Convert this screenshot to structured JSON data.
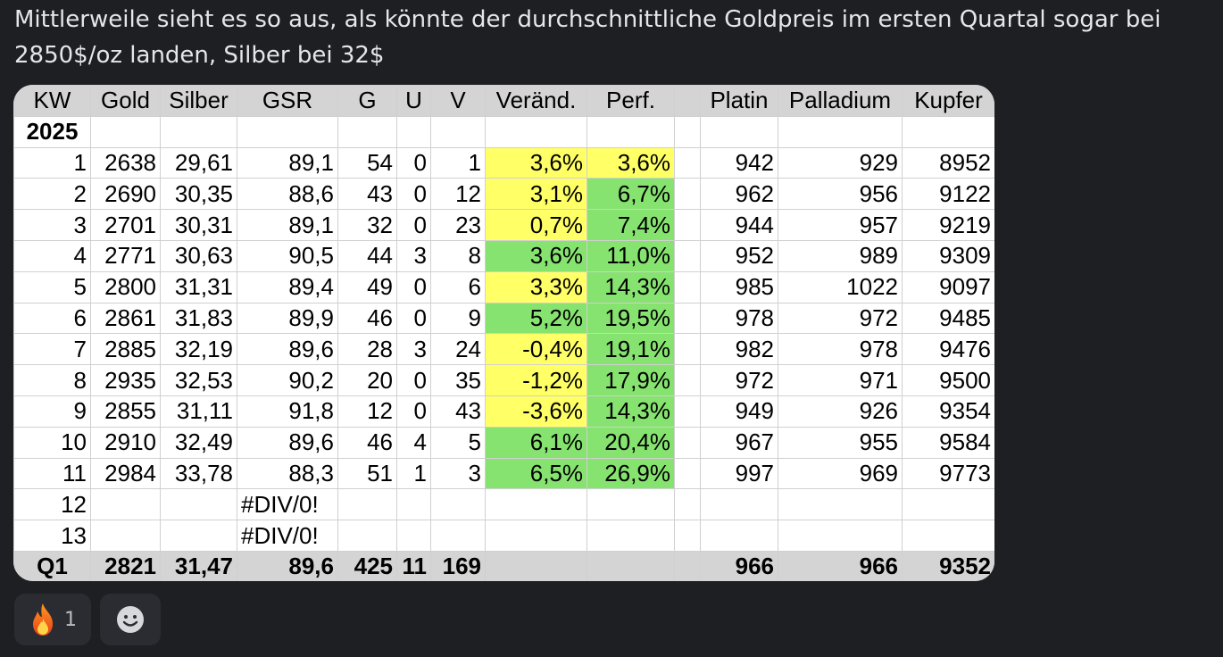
{
  "message": {
    "text": "Mittlerweile sieht es so aus, als könnte der durchschnittliche Goldpreis im ersten Quartal sogar bei 2850$/oz landen, Silber bei 32$"
  },
  "sheet": {
    "headers": [
      "KW",
      "Gold",
      "Silber",
      "GSR",
      "G",
      "U",
      "V",
      "Veränd.",
      "Perf.",
      "",
      "Platin",
      "Palladium",
      "Kupfer"
    ],
    "year_label": "2025",
    "rows": [
      {
        "kw": "1",
        "gold": "2638",
        "silber": "29,61",
        "gsr": "89,1",
        "g": "54",
        "u": "0",
        "v": "1",
        "veraend": "3,6%",
        "perf": "3,6%",
        "platin": "942",
        "palladium": "929",
        "kupfer": "8952",
        "veraend_color": "#ffff66",
        "perf_color": "#ffff66"
      },
      {
        "kw": "2",
        "gold": "2690",
        "silber": "30,35",
        "gsr": "88,6",
        "g": "43",
        "u": "0",
        "v": "12",
        "veraend": "3,1%",
        "perf": "6,7%",
        "platin": "962",
        "palladium": "956",
        "kupfer": "9122",
        "veraend_color": "#ffff66",
        "perf_color": "#86e36f"
      },
      {
        "kw": "3",
        "gold": "2701",
        "silber": "30,31",
        "gsr": "89,1",
        "g": "32",
        "u": "0",
        "v": "23",
        "veraend": "0,7%",
        "perf": "7,4%",
        "platin": "944",
        "palladium": "957",
        "kupfer": "9219",
        "veraend_color": "#ffff66",
        "perf_color": "#86e36f"
      },
      {
        "kw": "4",
        "gold": "2771",
        "silber": "30,63",
        "gsr": "90,5",
        "g": "44",
        "u": "3",
        "v": "8",
        "veraend": "3,6%",
        "perf": "11,0%",
        "platin": "952",
        "palladium": "989",
        "kupfer": "9309",
        "veraend_color": "#86e36f",
        "perf_color": "#86e36f"
      },
      {
        "kw": "5",
        "gold": "2800",
        "silber": "31,31",
        "gsr": "89,4",
        "g": "49",
        "u": "0",
        "v": "6",
        "veraend": "3,3%",
        "perf": "14,3%",
        "platin": "985",
        "palladium": "1022",
        "kupfer": "9097",
        "veraend_color": "#ffff66",
        "perf_color": "#86e36f"
      },
      {
        "kw": "6",
        "gold": "2861",
        "silber": "31,83",
        "gsr": "89,9",
        "g": "46",
        "u": "0",
        "v": "9",
        "veraend": "5,2%",
        "perf": "19,5%",
        "platin": "978",
        "palladium": "972",
        "kupfer": "9485",
        "veraend_color": "#86e36f",
        "perf_color": "#86e36f"
      },
      {
        "kw": "7",
        "gold": "2885",
        "silber": "32,19",
        "gsr": "89,6",
        "g": "28",
        "u": "3",
        "v": "24",
        "veraend": "-0,4%",
        "perf": "19,1%",
        "platin": "982",
        "palladium": "978",
        "kupfer": "9476",
        "veraend_color": "#ffff66",
        "perf_color": "#86e36f"
      },
      {
        "kw": "8",
        "gold": "2935",
        "silber": "32,53",
        "gsr": "90,2",
        "g": "20",
        "u": "0",
        "v": "35",
        "veraend": "-1,2%",
        "perf": "17,9%",
        "platin": "972",
        "palladium": "971",
        "kupfer": "9500",
        "veraend_color": "#ffff66",
        "perf_color": "#86e36f"
      },
      {
        "kw": "9",
        "gold": "2855",
        "silber": "31,11",
        "gsr": "91,8",
        "g": "12",
        "u": "0",
        "v": "43",
        "veraend": "-3,6%",
        "perf": "14,3%",
        "platin": "949",
        "palladium": "926",
        "kupfer": "9354",
        "veraend_color": "#ffff66",
        "perf_color": "#86e36f"
      },
      {
        "kw": "10",
        "gold": "2910",
        "silber": "32,49",
        "gsr": "89,6",
        "g": "46",
        "u": "4",
        "v": "5",
        "veraend": "6,1%",
        "perf": "20,4%",
        "platin": "967",
        "palladium": "955",
        "kupfer": "9584",
        "veraend_color": "#86e36f",
        "perf_color": "#86e36f"
      },
      {
        "kw": "11",
        "gold": "2984",
        "silber": "33,78",
        "gsr": "88,3",
        "g": "51",
        "u": "1",
        "v": "3",
        "veraend": "6,5%",
        "perf": "26,9%",
        "platin": "997",
        "palladium": "969",
        "kupfer": "9773",
        "veraend_color": "#86e36f",
        "perf_color": "#86e36f"
      }
    ],
    "empty_rows": [
      {
        "kw": "12",
        "gsr": "#DIV/0!"
      },
      {
        "kw": "13",
        "gsr": "#DIV/0!"
      }
    ],
    "total": {
      "kw": "Q1",
      "gold": "2821",
      "silber": "31,47",
      "gsr": "89,6",
      "g": "425",
      "u": "11",
      "v": "169",
      "platin": "966",
      "palladium": "966",
      "kupfer": "9352"
    }
  },
  "reactions": [
    {
      "icon": "fire-icon",
      "count": "1"
    }
  ],
  "add_reaction_icon": "smile-icon"
}
